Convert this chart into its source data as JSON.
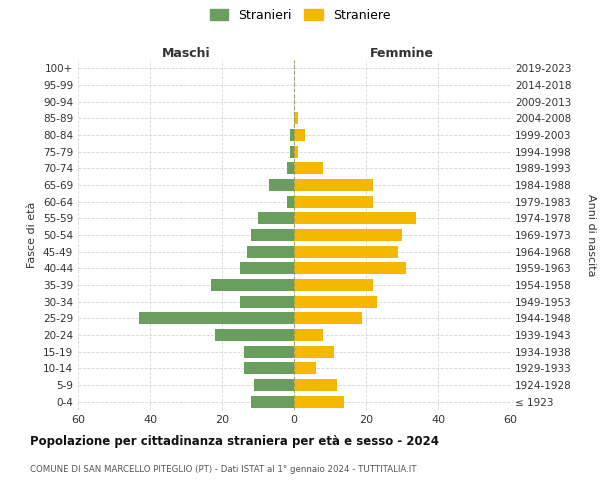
{
  "age_groups": [
    "100+",
    "95-99",
    "90-94",
    "85-89",
    "80-84",
    "75-79",
    "70-74",
    "65-69",
    "60-64",
    "55-59",
    "50-54",
    "45-49",
    "40-44",
    "35-39",
    "30-34",
    "25-29",
    "20-24",
    "15-19",
    "10-14",
    "5-9",
    "0-4"
  ],
  "birth_years": [
    "≤ 1923",
    "1924-1928",
    "1929-1933",
    "1934-1938",
    "1939-1943",
    "1944-1948",
    "1949-1953",
    "1954-1958",
    "1959-1963",
    "1964-1968",
    "1969-1973",
    "1974-1978",
    "1979-1983",
    "1984-1988",
    "1989-1993",
    "1994-1998",
    "1999-2003",
    "2004-2008",
    "2009-2013",
    "2014-2018",
    "2019-2023"
  ],
  "maschi": [
    0,
    0,
    0,
    0,
    1,
    1,
    2,
    7,
    2,
    10,
    12,
    13,
    15,
    23,
    15,
    43,
    22,
    14,
    14,
    11,
    12
  ],
  "femmine": [
    0,
    0,
    0,
    1,
    3,
    1,
    8,
    22,
    22,
    34,
    30,
    29,
    31,
    22,
    23,
    19,
    8,
    11,
    6,
    12,
    14
  ],
  "color_maschi": "#6a9e5e",
  "color_femmine": "#f5b800",
  "title_main": "Popolazione per cittadinanza straniera per età e sesso - 2024",
  "title_sub": "COMUNE DI SAN MARCELLO PITEGLIO (PT) - Dati ISTAT al 1° gennaio 2024 - TUTTITALIA.IT",
  "label_maschi": "Stranieri",
  "label_femmine": "Straniere",
  "xlabel_left": "Maschi",
  "xlabel_right": "Femmine",
  "ylabel_left": "Fasce di età",
  "ylabel_right": "Anni di nascita",
  "xlim": 60,
  "background_color": "#ffffff",
  "grid_color": "#cccccc"
}
